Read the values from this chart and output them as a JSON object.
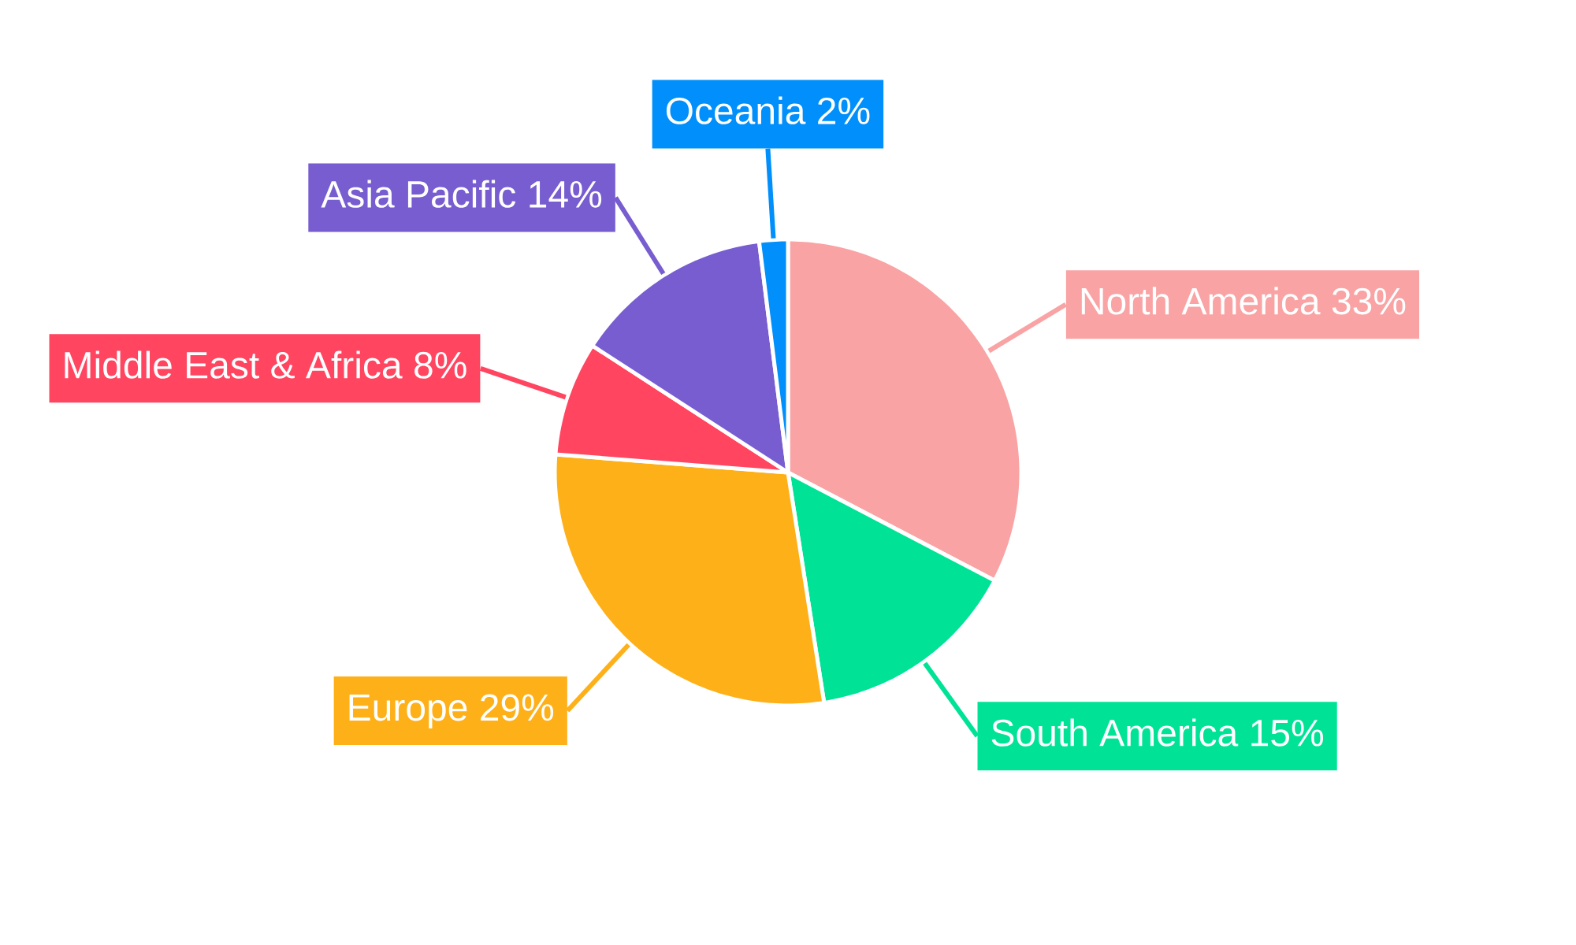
{
  "chart_data": {
    "type": "pie",
    "categories": [
      "North America",
      "South America",
      "Europe",
      "Middle East & Africa",
      "Asia Pacific",
      "Oceania"
    ],
    "values": [
      33,
      15,
      29,
      8,
      14,
      2
    ],
    "value_labels": [
      "33%",
      "15%",
      "29%",
      "8%",
      "14%",
      "2%"
    ],
    "colors": [
      "#f9a3a4",
      "#00e396",
      "#feb019",
      "#ff4560",
      "#775dd0",
      "#008ffb"
    ]
  }
}
